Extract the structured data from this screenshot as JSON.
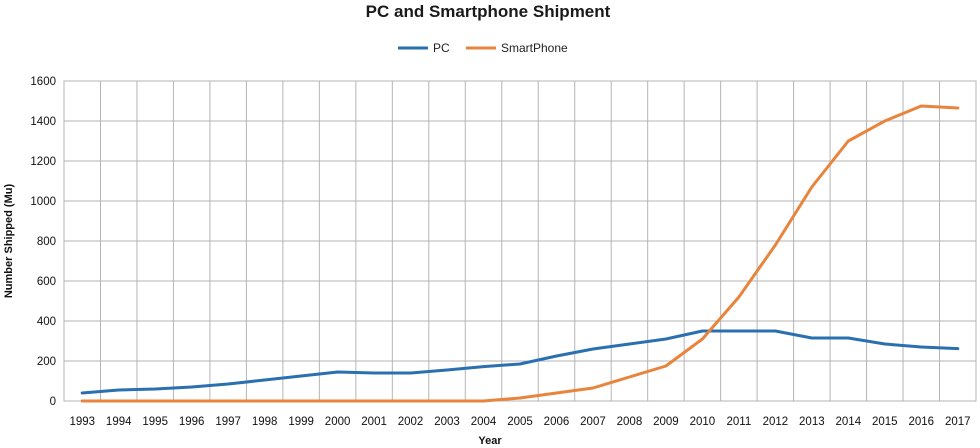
{
  "chart_data": {
    "type": "line",
    "title": "PC and Smartphone Shipment",
    "xlabel": "Year",
    "ylabel": "Number Shipped (Mu)",
    "ylim": [
      0,
      1600
    ],
    "yticks": [
      0,
      200,
      400,
      600,
      800,
      1000,
      1200,
      1400,
      1600
    ],
    "grid": true,
    "legend_position": "top",
    "categories": [
      "1993",
      "1994",
      "1995",
      "1996",
      "1997",
      "1998",
      "1999",
      "2000",
      "2001",
      "2002",
      "2003",
      "2004",
      "2005",
      "2006",
      "2007",
      "2008",
      "2009",
      "2010",
      "2011",
      "2012",
      "2013",
      "2014",
      "2015",
      "2016",
      "2017"
    ],
    "series": [
      {
        "name": "PC",
        "color": "#2a70b0",
        "values": [
          40,
          55,
          60,
          70,
          85,
          105,
          125,
          145,
          140,
          140,
          155,
          172,
          185,
          225,
          260,
          285,
          310,
          350,
          350,
          350,
          315,
          315,
          285,
          270,
          262
        ]
      },
      {
        "name": "SmartPhone",
        "color": "#e8843c",
        "values": [
          0,
          0,
          0,
          0,
          0,
          0,
          0,
          0,
          0,
          0,
          0,
          0,
          15,
          40,
          65,
          120,
          175,
          310,
          520,
          780,
          1070,
          1300,
          1400,
          1475,
          1465
        ]
      }
    ]
  }
}
